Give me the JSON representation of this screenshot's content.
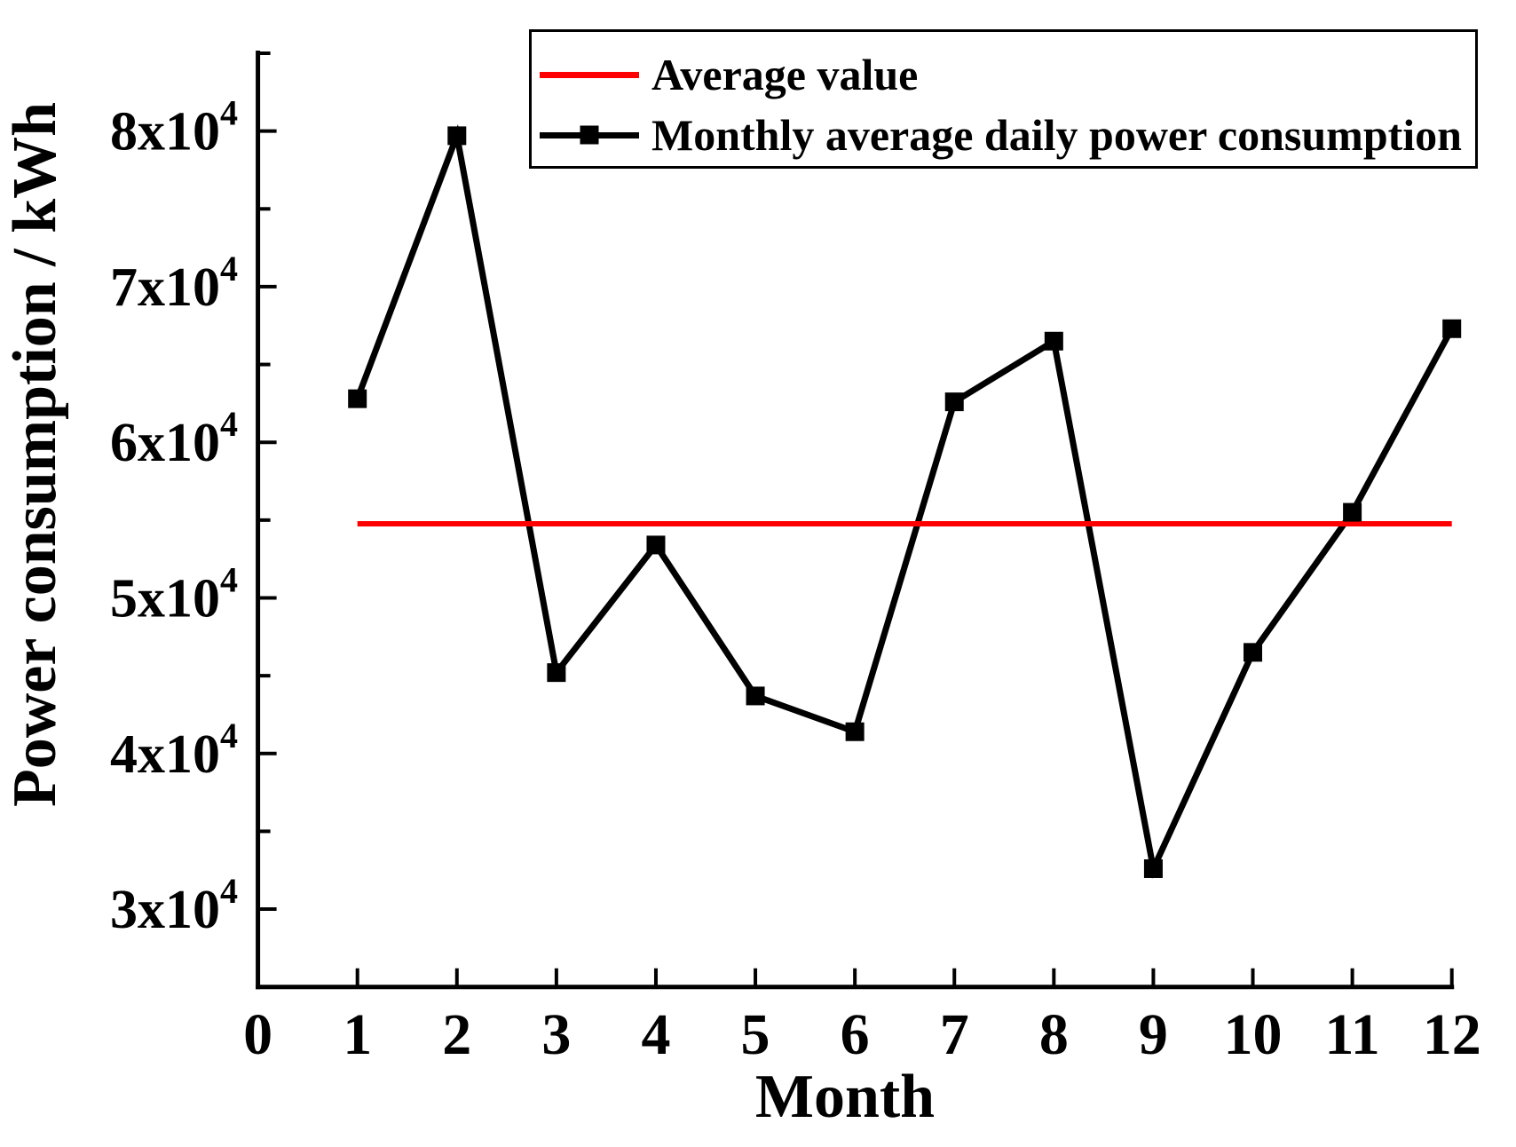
{
  "colors": {
    "background": "#ffffff",
    "axis": "#000000",
    "series_line": "#000000",
    "average_line": "#ff0000"
  },
  "legend": {
    "entries": [
      {
        "label": "Average value",
        "swatch": "red-line"
      },
      {
        "label": "Monthly average daily power consumption",
        "swatch": "black-line-with-square-marker"
      }
    ]
  },
  "chart_data": {
    "type": "line",
    "title": "",
    "xlabel": "Month",
    "ylabel": "Power consumption / kWh",
    "xlim": [
      0,
      12
    ],
    "ylim": [
      25000,
      85000
    ],
    "grid": false,
    "legend_position": "top-inside",
    "x_ticks": [
      {
        "value": 0,
        "label": "0"
      },
      {
        "value": 1,
        "label": "1"
      },
      {
        "value": 2,
        "label": "2"
      },
      {
        "value": 3,
        "label": "3"
      },
      {
        "value": 4,
        "label": "4"
      },
      {
        "value": 5,
        "label": "5"
      },
      {
        "value": 6,
        "label": "6"
      },
      {
        "value": 7,
        "label": "7"
      },
      {
        "value": 8,
        "label": "8"
      },
      {
        "value": 9,
        "label": "9"
      },
      {
        "value": 10,
        "label": "10"
      },
      {
        "value": 11,
        "label": "11"
      },
      {
        "value": 12,
        "label": "12"
      }
    ],
    "y_ticks": [
      {
        "value": 30000,
        "label_base": "3x10",
        "label_exp": "4"
      },
      {
        "value": 40000,
        "label_base": "4x10",
        "label_exp": "4"
      },
      {
        "value": 50000,
        "label_base": "5x10",
        "label_exp": "4"
      },
      {
        "value": 60000,
        "label_base": "6x10",
        "label_exp": "4"
      },
      {
        "value": 70000,
        "label_base": "7x10",
        "label_exp": "4"
      },
      {
        "value": 80000,
        "label_base": "8x10",
        "label_exp": "4"
      }
    ],
    "y_minor_ticks": [
      35000,
      45000,
      55000,
      65000,
      75000,
      85000
    ],
    "series": [
      {
        "name": "Monthly average daily power consumption",
        "color": "#000000",
        "marker": "square",
        "x": [
          1,
          2,
          3,
          4,
          5,
          6,
          7,
          8,
          9,
          10,
          11,
          12
        ],
        "values": [
          62800,
          79700,
          45200,
          53400,
          43700,
          41400,
          62600,
          66500,
          32600,
          46500,
          55500,
          67300
        ]
      }
    ],
    "average_line": {
      "name": "Average value",
      "color": "#ff0000",
      "value": 54766.7,
      "x_start": 1,
      "x_end": 12
    }
  }
}
